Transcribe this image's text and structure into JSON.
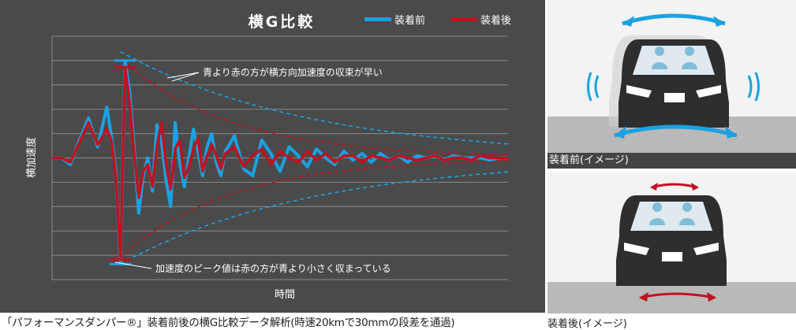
{
  "chart_data": {
    "type": "line",
    "title": "横G比較",
    "xlabel": "時間",
    "ylabel": "横加速度",
    "legend_position": "top-right",
    "grid": true,
    "ylim": [
      -5.5,
      5.5
    ],
    "xlim": [
      0,
      100
    ],
    "series": [
      {
        "name": "装着前",
        "color": "#1ba1e2",
        "x": [
          0,
          2,
          4,
          6,
          8,
          10,
          12,
          13,
          14,
          15,
          16,
          17,
          18,
          19,
          20,
          21,
          22,
          23,
          24,
          25,
          26,
          27,
          28,
          29,
          30,
          31,
          32,
          33,
          34,
          35,
          36,
          37,
          38,
          40,
          42,
          44,
          46,
          48,
          50,
          52,
          54,
          56,
          58,
          60,
          62,
          64,
          66,
          68,
          70,
          72,
          74,
          76,
          78,
          80,
          82,
          84,
          86,
          88,
          90,
          92,
          94,
          96,
          98,
          100
        ],
        "values": [
          0,
          0,
          -0.3,
          0.8,
          1.8,
          0.5,
          2.3,
          1,
          -0.6,
          -4.8,
          4.4,
          3,
          0.5,
          -2.5,
          -0.8,
          0,
          -1.5,
          1.5,
          0.8,
          -1,
          -2.2,
          1.6,
          -0.2,
          -1.3,
          0,
          1.3,
          0.3,
          -0.8,
          0.5,
          1.1,
          -0.2,
          -0.8,
          0.3,
          1,
          -0.5,
          -0.8,
          0.8,
          0.2,
          -0.6,
          0.5,
          0.1,
          -0.4,
          0.4,
          0,
          -0.3,
          0.3,
          -0.1,
          0.2,
          -0.2,
          0.2,
          -0.1,
          0.1,
          -0.2,
          0.1,
          0,
          0.1,
          -0.1,
          0.1,
          0,
          0,
          0,
          -0.1,
          0,
          0
        ]
      },
      {
        "name": "装着後",
        "color": "#c0111f",
        "x": [
          0,
          2,
          4,
          6,
          8,
          10,
          12,
          13,
          14,
          15,
          16,
          17,
          18,
          19,
          20,
          21,
          22,
          23,
          24,
          25,
          26,
          27,
          28,
          29,
          30,
          31,
          32,
          33,
          34,
          35,
          36,
          37,
          38,
          40,
          42,
          44,
          46,
          48,
          50,
          52,
          54,
          56,
          58,
          60,
          62,
          64,
          66,
          68,
          70,
          72,
          74,
          76,
          78,
          80,
          82,
          84,
          86,
          88,
          90,
          92,
          94,
          96,
          98,
          100
        ],
        "values": [
          0,
          0,
          -0.2,
          0.7,
          1.6,
          0.6,
          1.3,
          0.8,
          -0.8,
          -4.6,
          4.1,
          2.5,
          0.2,
          -1.8,
          -0.6,
          -0.3,
          -1.3,
          0.5,
          1.6,
          -0.3,
          -1.4,
          0.4,
          0.8,
          -0.9,
          -0.4,
          0.4,
          0.9,
          -0.6,
          0.1,
          0.6,
          0.1,
          -0.5,
          0.2,
          0.5,
          -0.4,
          0.1,
          0.4,
          -0.3,
          0.3,
          0,
          -0.2,
          0.3,
          -0.1,
          0.2,
          -0.2,
          0.1,
          0.1,
          -0.2,
          0.1,
          0,
          -0.1,
          0.1,
          0,
          -0.1,
          0,
          0.1,
          -0.1,
          0,
          0,
          -0.1,
          0.1,
          0,
          0,
          0
        ]
      }
    ],
    "annotations": [
      "青より赤の方が横方向加速度の収束が早い",
      "加速度のピーク値は赤の方が青より小さく収まっている"
    ]
  },
  "caption": "「パフォーマンスダンパー®」装着前後の横G比較データ解析(時速20kmで30mmの段差を通過)",
  "photos": [
    {
      "caption": "装着前(イメージ)",
      "arrow_color": "#1ba1e2"
    },
    {
      "caption": "装着後(イメージ)",
      "arrow_color": "#c0111f"
    }
  ]
}
